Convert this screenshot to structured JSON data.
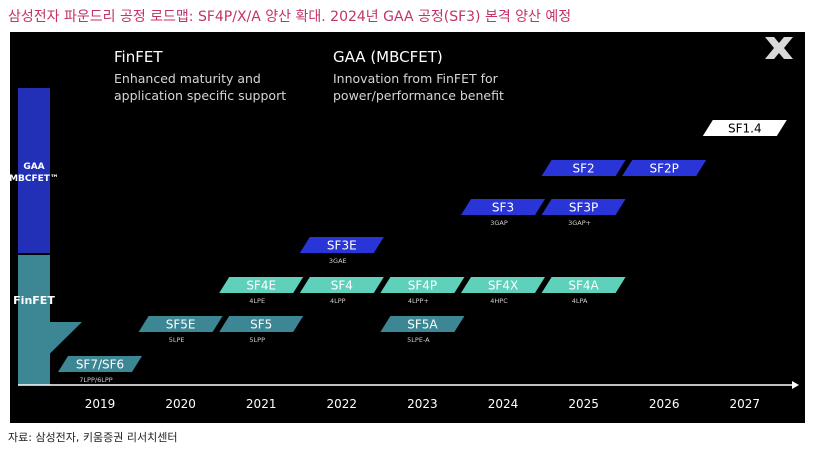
{
  "headline": "삼성전자 파운드리 공정 로드맵: SF4P/X/A 양산 확대. 2024년 GAA 공정(SF3) 본격 양산 예정",
  "source": "자료: 삼성전자, 키움증권 리서치센터",
  "logo_icon": "x-icon",
  "colors": {
    "gaa_blue": "#2a35d8",
    "gaa_side": "#2230b8",
    "finfet_teal": "#3c8793",
    "finfet_light_teal": "#5fd0b9",
    "sf14_white": "#ffffff",
    "background": "#000000",
    "headline": "#c3326b"
  },
  "chart_data": {
    "type": "roadmap",
    "title": "",
    "x_axis": {
      "ticks": [
        "2019",
        "2020",
        "2021",
        "2022",
        "2023",
        "2024",
        "2025",
        "2026",
        "2027"
      ]
    },
    "left_labels": [
      {
        "text_lines": [
          "GAA",
          "MBCFET™"
        ],
        "color": "#2230b8"
      },
      {
        "text_lines": [
          "FinFET"
        ],
        "color": "#3c8793"
      }
    ],
    "headers": [
      {
        "title": "FinFET",
        "desc_lines": [
          "Enhanced maturity and",
          "application specific support"
        ]
      },
      {
        "title": "GAA (MBCFET)",
        "desc_lines": [
          "Innovation from FinFET for",
          "power/performance benefit"
        ]
      }
    ],
    "nodes": [
      {
        "name": "SF7/SF6",
        "sub": "7LPP/6LPP",
        "year": 2019,
        "tier": 1,
        "tech": "finfet"
      },
      {
        "name": "SF5E",
        "sub": "5LPE",
        "year": 2020,
        "tier": 2,
        "tech": "finfet"
      },
      {
        "name": "SF5",
        "sub": "5LPP",
        "year": 2021,
        "tier": 2,
        "tech": "finfet"
      },
      {
        "name": "SF5A",
        "sub": "5LPE-A",
        "year": 2023,
        "tier": 2,
        "tech": "finfet"
      },
      {
        "name": "SF4E",
        "sub": "4LPE",
        "year": 2021,
        "tier": 3,
        "tech": "finfet-light"
      },
      {
        "name": "SF4",
        "sub": "4LPP",
        "year": 2022,
        "tier": 3,
        "tech": "finfet-light"
      },
      {
        "name": "SF4P",
        "sub": "4LPP+",
        "year": 2023,
        "tier": 3,
        "tech": "finfet-light"
      },
      {
        "name": "SF4X",
        "sub": "4HPC",
        "year": 2024,
        "tier": 3,
        "tech": "finfet-light"
      },
      {
        "name": "SF4A",
        "sub": "4LPA",
        "year": 2025,
        "tier": 3,
        "tech": "finfet-light"
      },
      {
        "name": "SF3E",
        "sub": "3GAE",
        "year": 2022,
        "tier": 4,
        "tech": "gaa"
      },
      {
        "name": "SF3",
        "sub": "3GAP",
        "year": 2024,
        "tier": 5,
        "tech": "gaa"
      },
      {
        "name": "SF3P",
        "sub": "3GAP+",
        "year": 2025,
        "tier": 5,
        "tech": "gaa"
      },
      {
        "name": "SF2",
        "sub": "",
        "year": 2025,
        "tier": 6,
        "tech": "gaa"
      },
      {
        "name": "SF2P",
        "sub": "",
        "year": 2026,
        "tier": 6,
        "tech": "gaa"
      },
      {
        "name": "SF1.4",
        "sub": "",
        "year": 2027,
        "tier": 7,
        "tech": "white"
      }
    ]
  }
}
